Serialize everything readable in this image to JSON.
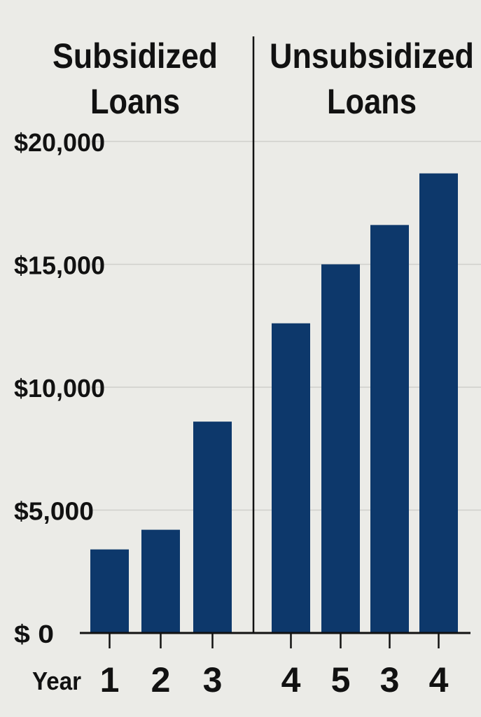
{
  "chart_data": {
    "type": "bar",
    "panels": [
      {
        "title_line1": "Subsidized",
        "title_line2": "Loans"
      },
      {
        "title_line1": "Unsubsidized",
        "title_line2": "Loans"
      }
    ],
    "xlabel": "Year",
    "categories": [
      "1",
      "2",
      "3",
      "4",
      "5",
      "3",
      "4"
    ],
    "panel_of_category": [
      0,
      0,
      0,
      1,
      1,
      1,
      1
    ],
    "values": [
      3400,
      4200,
      8600,
      12600,
      15000,
      16600,
      18700
    ],
    "yticks": [
      0,
      5000,
      10000,
      15000,
      20000
    ],
    "ytick_labels": [
      "$ 0",
      "$5,000",
      "$10,000",
      "$15,000",
      "$20,000"
    ],
    "ylim": [
      0,
      20000
    ],
    "grid": true,
    "colors": {
      "bar": "#0d386b",
      "grid": "#cfcfcb",
      "background": "#ebebe7"
    }
  }
}
